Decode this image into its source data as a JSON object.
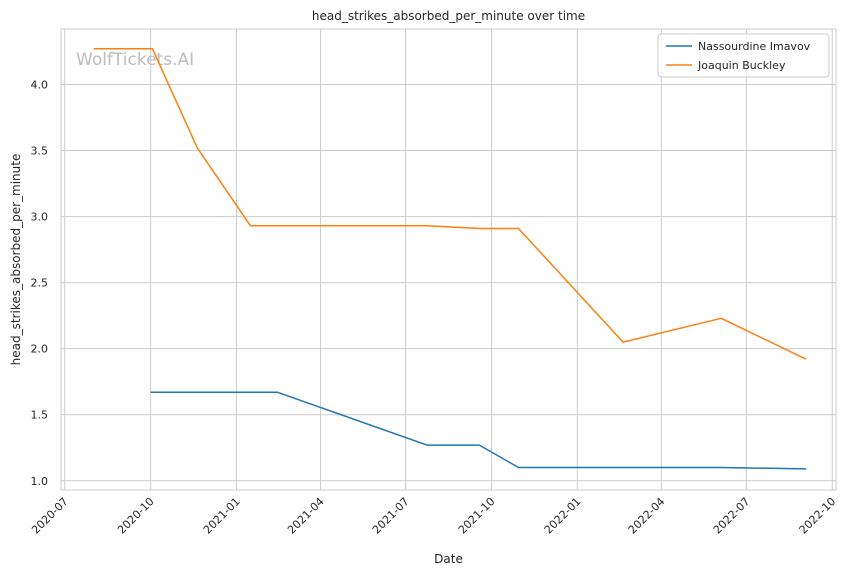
{
  "chart_data": {
    "type": "line",
    "title": "head_strikes_absorbed_per_minute over time",
    "xlabel": "Date",
    "ylabel": "head_strikes_absorbed_per_minute",
    "watermark": "WolfTickets.AI",
    "x_range": [
      "2020-06-27",
      "2022-10-05"
    ],
    "ylim": [
      0.93,
      4.42
    ],
    "grid": true,
    "legend_position": "top-right",
    "x_ticks": [
      "2020-07-01",
      "2020-10-01",
      "2021-01-01",
      "2021-04-01",
      "2021-07-01",
      "2021-10-01",
      "2022-01-01",
      "2022-04-01",
      "2022-07-01",
      "2022-10-01"
    ],
    "x_tick_labels": [
      "2020-07",
      "2020-10",
      "2021-01",
      "2021-04",
      "2021-07",
      "2021-10",
      "2022-01",
      "2022-04",
      "2022-07",
      "2022-10"
    ],
    "y_ticks": [
      1.0,
      1.5,
      2.0,
      2.5,
      3.0,
      3.5,
      4.0
    ],
    "y_tick_labels": [
      "1.0",
      "1.5",
      "2.0",
      "2.5",
      "3.0",
      "3.5",
      "4.0"
    ],
    "series": [
      {
        "name": "Nassourdine Imavov",
        "color": "#1f77b4",
        "points": [
          {
            "x": "2020-10-01",
            "y": 1.67
          },
          {
            "x": "2021-02-14",
            "y": 1.67
          },
          {
            "x": "2021-07-24",
            "y": 1.27
          },
          {
            "x": "2021-09-18",
            "y": 1.27
          },
          {
            "x": "2021-10-30",
            "y": 1.1
          },
          {
            "x": "2022-06-04",
            "y": 1.1
          },
          {
            "x": "2022-09-03",
            "y": 1.09
          }
        ]
      },
      {
        "name": "Joaquin Buckley",
        "color": "#ff7f0e",
        "points": [
          {
            "x": "2020-08-01",
            "y": 4.27
          },
          {
            "x": "2020-10-03",
            "y": 4.27
          },
          {
            "x": "2020-11-20",
            "y": 3.52
          },
          {
            "x": "2021-01-16",
            "y": 2.93
          },
          {
            "x": "2021-07-24",
            "y": 2.93
          },
          {
            "x": "2021-09-18",
            "y": 2.91
          },
          {
            "x": "2021-10-30",
            "y": 2.91
          },
          {
            "x": "2022-02-19",
            "y": 2.05
          },
          {
            "x": "2022-06-04",
            "y": 2.23
          },
          {
            "x": "2022-09-03",
            "y": 1.92
          }
        ]
      }
    ]
  }
}
